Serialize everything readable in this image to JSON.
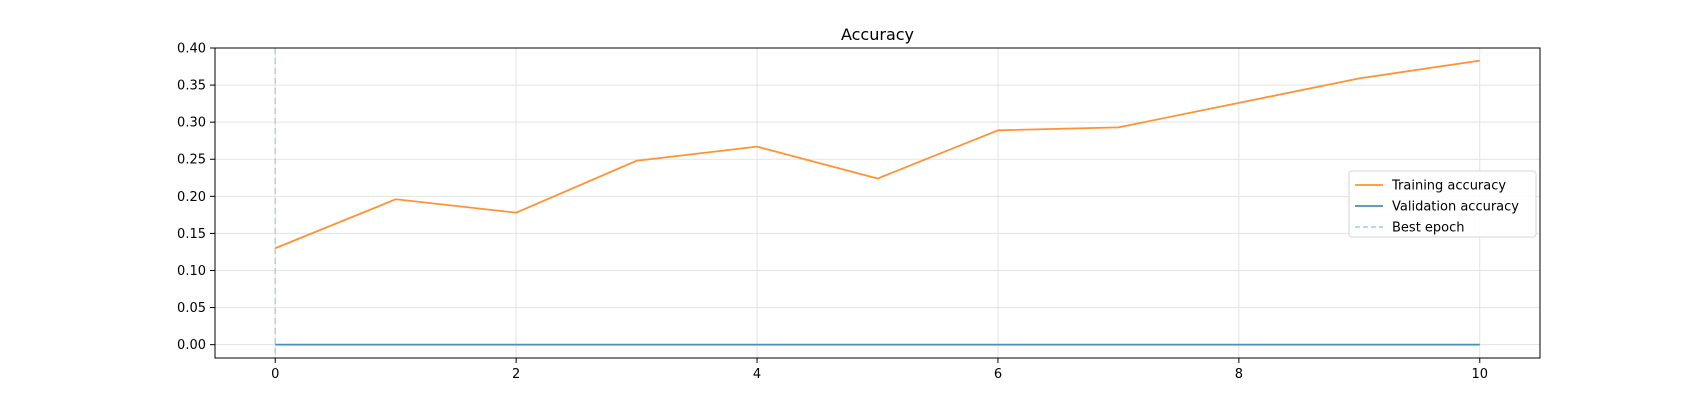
{
  "chart_data": {
    "type": "line",
    "title": "Accuracy",
    "xlabel": "",
    "ylabel": "",
    "xlim": [
      -0.5,
      10.5
    ],
    "ylim": [
      -0.018,
      0.4
    ],
    "x": [
      0,
      1,
      2,
      3,
      4,
      5,
      6,
      7,
      8,
      9,
      10
    ],
    "xticks": [
      0,
      2,
      4,
      6,
      8,
      10
    ],
    "yticks": [
      0.0,
      0.05,
      0.1,
      0.15,
      0.2,
      0.25,
      0.3,
      0.35,
      0.4
    ],
    "grid": true,
    "legend_position": "center-right",
    "series": [
      {
        "name": "Training accuracy",
        "color": "#ff9334",
        "values": [
          0.13,
          0.196,
          0.178,
          0.248,
          0.267,
          0.224,
          0.289,
          0.293,
          0.326,
          0.359,
          0.383
        ]
      },
      {
        "name": "Validation accuracy",
        "color": "#4a8fb3",
        "values": [
          0.0,
          0.0,
          0.0,
          0.0,
          0.0,
          0.0,
          0.0,
          0.0,
          0.0,
          0.0,
          0.0
        ]
      }
    ],
    "best_epoch": {
      "name": "Best epoch",
      "x": 0,
      "color": "#a8d5d8",
      "style": "dashed"
    }
  }
}
